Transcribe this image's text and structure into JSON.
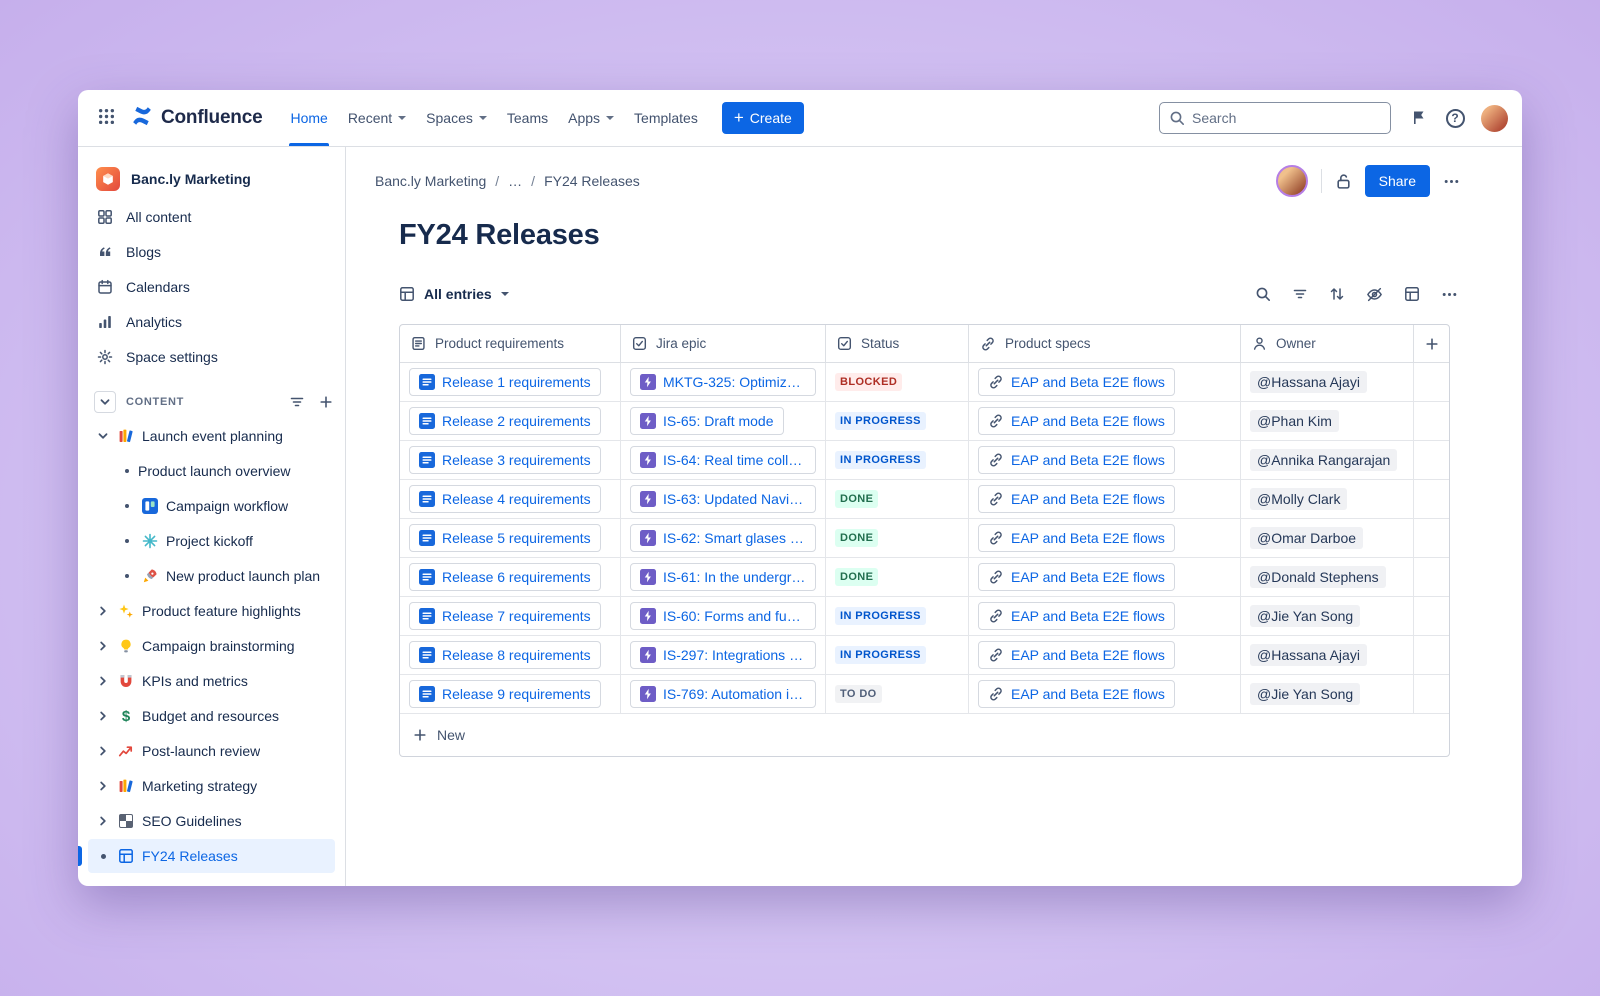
{
  "colors": {
    "accent": "#0C66E4",
    "text": "#172B4D",
    "muted": "#44546F",
    "border": "#DCDFE4",
    "selected_bg": "#E9F2FF",
    "status": {
      "blocked_bg": "#FFECEB",
      "blocked_fg": "#AE2E24",
      "inprogress_bg": "#E9F2FF",
      "inprogress_fg": "#0055CC",
      "done_bg": "#DCFFF1",
      "done_fg": "#216E4E",
      "todo_bg": "#F1F2F4",
      "todo_fg": "#505F79"
    }
  },
  "topnav": {
    "logo_text": "Confluence",
    "items": [
      {
        "label": "Home",
        "active": true,
        "caret": false
      },
      {
        "label": "Recent",
        "active": false,
        "caret": true
      },
      {
        "label": "Spaces",
        "active": false,
        "caret": true
      },
      {
        "label": "Teams",
        "active": false,
        "caret": false
      },
      {
        "label": "Apps",
        "active": false,
        "caret": true
      },
      {
        "label": "Templates",
        "active": false,
        "caret": false
      }
    ],
    "create_label": "Create",
    "search_placeholder": "Search"
  },
  "sidebar": {
    "space_name": "Banc.ly Marketing",
    "nav_items": [
      {
        "label": "All content",
        "icon": "all-content-icon"
      },
      {
        "label": "Blogs",
        "icon": "quote-icon"
      },
      {
        "label": "Calendars",
        "icon": "calendar-icon"
      },
      {
        "label": "Analytics",
        "icon": "analytics-icon"
      },
      {
        "label": "Space settings",
        "icon": "gear-icon"
      }
    ],
    "content_label": "CONTENT",
    "tree": [
      {
        "label": "Launch event planning",
        "icon": "books-icon",
        "expanded": true,
        "selected": false,
        "children": [
          {
            "label": "Product launch overview",
            "icon": ""
          },
          {
            "label": "Campaign workflow",
            "icon": "workflow-icon"
          },
          {
            "label": "Project kickoff",
            "icon": "snowflake-icon"
          },
          {
            "label": "New product launch plan",
            "icon": "rocket-icon"
          }
        ]
      },
      {
        "label": "Product feature highlights",
        "icon": "sparkles-icon",
        "expanded": false,
        "selected": false,
        "children": []
      },
      {
        "label": "Campaign brainstorming",
        "icon": "lightbulb-icon",
        "expanded": false,
        "selected": false,
        "children": []
      },
      {
        "label": "KPIs and metrics",
        "icon": "magnet-icon",
        "expanded": false,
        "selected": false,
        "children": []
      },
      {
        "label": "Budget and resources",
        "icon": "dollar-icon",
        "expanded": false,
        "selected": false,
        "children": []
      },
      {
        "label": "Post-launch review",
        "icon": "trend-icon",
        "expanded": false,
        "selected": false,
        "children": []
      },
      {
        "label": "Marketing strategy",
        "icon": "books-icon",
        "expanded": false,
        "selected": false,
        "children": []
      },
      {
        "label": "SEO Guidelines",
        "icon": "checkered-icon",
        "expanded": false,
        "selected": false,
        "children": []
      },
      {
        "label": "FY24 Releases",
        "icon": "table-icon",
        "expanded": false,
        "selected": true,
        "children": []
      }
    ]
  },
  "main": {
    "breadcrumb": [
      "Banc.ly Marketing",
      "…",
      "FY24 Releases"
    ],
    "share_label": "Share",
    "title": "FY24 Releases",
    "view_label": "All entries",
    "new_label": "New"
  },
  "table": {
    "headers": [
      {
        "label": "Product requirements",
        "icon": "doc-outline-icon"
      },
      {
        "label": "Jira epic",
        "icon": "checkbox-icon"
      },
      {
        "label": "Status",
        "icon": "checkbox-icon"
      },
      {
        "label": "Product specs",
        "icon": "link-icon"
      },
      {
        "label": "Owner",
        "icon": "person-icon"
      }
    ],
    "rows": [
      {
        "req": "Release 1 requirements",
        "epic": "MKTG-325: Optimize...",
        "status": {
          "label": "BLOCKED",
          "type": "blocked"
        },
        "specs": "EAP and Beta E2E flows",
        "owner": "@Hassana Ajayi"
      },
      {
        "req": "Release 2 requirements",
        "epic": "IS-65: Draft mode",
        "status": {
          "label": "IN PROGRESS",
          "type": "inprogress"
        },
        "specs": "EAP and Beta E2E flows",
        "owner": "@Phan Kim"
      },
      {
        "req": "Release 3 requirements",
        "epic": "IS-64: Real time colla...",
        "status": {
          "label": "IN PROGRESS",
          "type": "inprogress"
        },
        "specs": "EAP and Beta E2E flows",
        "owner": "@Annika Rangarajan"
      },
      {
        "req": "Release 4 requirements",
        "epic": "IS-63: Updated Navig...",
        "status": {
          "label": "DONE",
          "type": "done"
        },
        "specs": "EAP and Beta E2E flows",
        "owner": "@Molly Clark"
      },
      {
        "req": "Release 5 requirements",
        "epic": "IS-62: Smart glases a...",
        "status": {
          "label": "DONE",
          "type": "done"
        },
        "specs": "EAP and Beta E2E flows",
        "owner": "@Omar Darboe"
      },
      {
        "req": "Release 6 requirements",
        "epic": "IS-61: In the undergro...",
        "status": {
          "label": "DONE",
          "type": "done"
        },
        "specs": "EAP and Beta E2E flows",
        "owner": "@Donald Stephens"
      },
      {
        "req": "Release 7 requirements",
        "epic": "IS-60: Forms and fun...",
        "status": {
          "label": "IN PROGRESS",
          "type": "inprogress"
        },
        "specs": "EAP and Beta E2E flows",
        "owner": "@Jie Yan Song"
      },
      {
        "req": "Release 8 requirements",
        "epic": "IS-297: Integrations w...",
        "status": {
          "label": "IN PROGRESS",
          "type": "inprogress"
        },
        "specs": "EAP and Beta E2E flows",
        "owner": "@Hassana Ajayi"
      },
      {
        "req": "Release 9 requirements",
        "epic": "IS-769: Automation in...",
        "status": {
          "label": "TO DO",
          "type": "todo"
        },
        "specs": "EAP and Beta E2E flows",
        "owner": "@Jie Yan Song"
      }
    ]
  }
}
